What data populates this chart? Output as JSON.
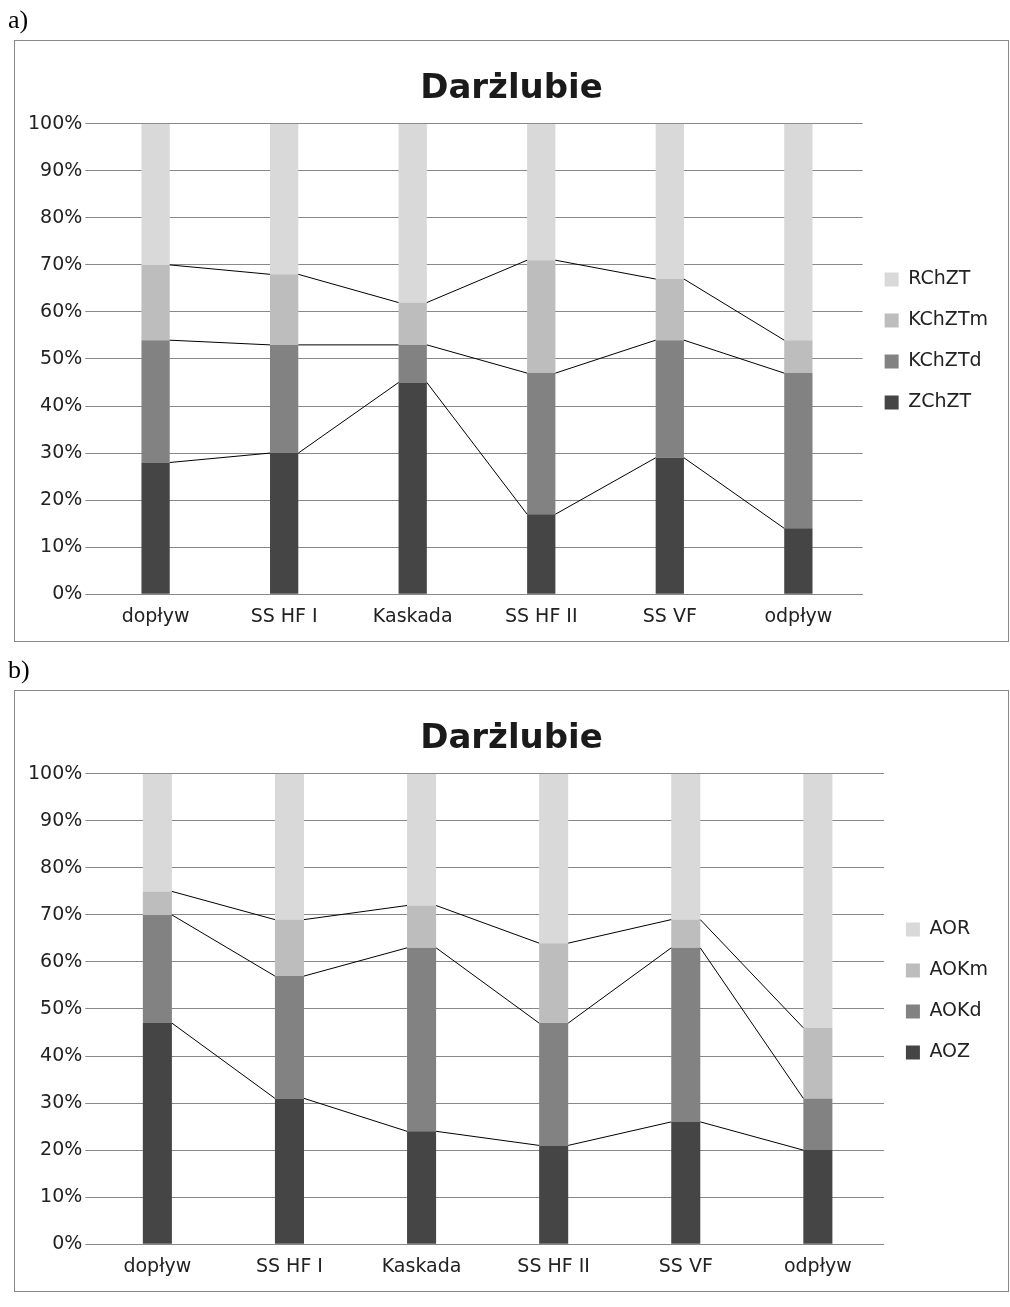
{
  "chart_data": [
    {
      "type": "bar",
      "title": "Darżlubie",
      "annotations": [
        "a)"
      ],
      "stacked": true,
      "categories": [
        "dopływ",
        "SS HF I",
        "Kaskada",
        "SS HF II",
        "SS VF",
        "odpływ"
      ],
      "series": [
        {
          "name": "ZChZT",
          "color": "#454545",
          "values": [
            28,
            30,
            45,
            17,
            29,
            14
          ]
        },
        {
          "name": "KChZTd",
          "color": "#828282",
          "values": [
            26,
            23,
            8,
            30,
            25,
            33
          ]
        },
        {
          "name": "KChZTm",
          "color": "#bdbdbd",
          "values": [
            16,
            15,
            9,
            24,
            13,
            7
          ]
        },
        {
          "name": "RChZT",
          "color": "#d9d9d9",
          "values": [
            30,
            32,
            38,
            29,
            33,
            46
          ]
        }
      ],
      "ylim": [
        0,
        100
      ],
      "yticks": [
        {
          "value": 0,
          "label": "0%"
        },
        {
          "value": 10,
          "label": "10%"
        },
        {
          "value": 20,
          "label": "20%"
        },
        {
          "value": 30,
          "label": "30%"
        },
        {
          "value": 40,
          "label": "40%"
        },
        {
          "value": 50,
          "label": "50%"
        },
        {
          "value": 60,
          "label": "60%"
        },
        {
          "value": 70,
          "label": "70%"
        },
        {
          "value": 80,
          "label": "80%"
        },
        {
          "value": 90,
          "label": "90%"
        },
        {
          "value": 100,
          "label": "100%"
        }
      ],
      "grid": "y",
      "legend": "right"
    },
    {
      "type": "bar",
      "title": "Darżlubie",
      "annotations": [
        "b)"
      ],
      "stacked": true,
      "categories": [
        "dopływ",
        "SS HF I",
        "Kaskada",
        "SS HF II",
        "SS VF",
        "odpływ"
      ],
      "series": [
        {
          "name": "AOZ",
          "color": "#454545",
          "values": [
            47,
            31,
            24,
            21,
            26,
            20
          ]
        },
        {
          "name": "AOKd",
          "color": "#828282",
          "values": [
            23,
            26,
            39,
            26,
            37,
            11
          ]
        },
        {
          "name": "AOKm",
          "color": "#bdbdbd",
          "values": [
            5,
            12,
            9,
            17,
            6,
            15
          ]
        },
        {
          "name": "AOR",
          "color": "#d9d9d9",
          "values": [
            25,
            31,
            28,
            36,
            31,
            54
          ]
        }
      ],
      "ylim": [
        0,
        100
      ],
      "yticks": [
        {
          "value": 0,
          "label": "0%"
        },
        {
          "value": 10,
          "label": "10%"
        },
        {
          "value": 20,
          "label": "20%"
        },
        {
          "value": 30,
          "label": "30%"
        },
        {
          "value": 40,
          "label": "40%"
        },
        {
          "value": 50,
          "label": "50%"
        },
        {
          "value": 60,
          "label": "60%"
        },
        {
          "value": 70,
          "label": "70%"
        },
        {
          "value": 80,
          "label": "80%"
        },
        {
          "value": 90,
          "label": "90%"
        },
        {
          "value": 100,
          "label": "100%"
        }
      ],
      "grid": "y",
      "legend": "right"
    }
  ]
}
